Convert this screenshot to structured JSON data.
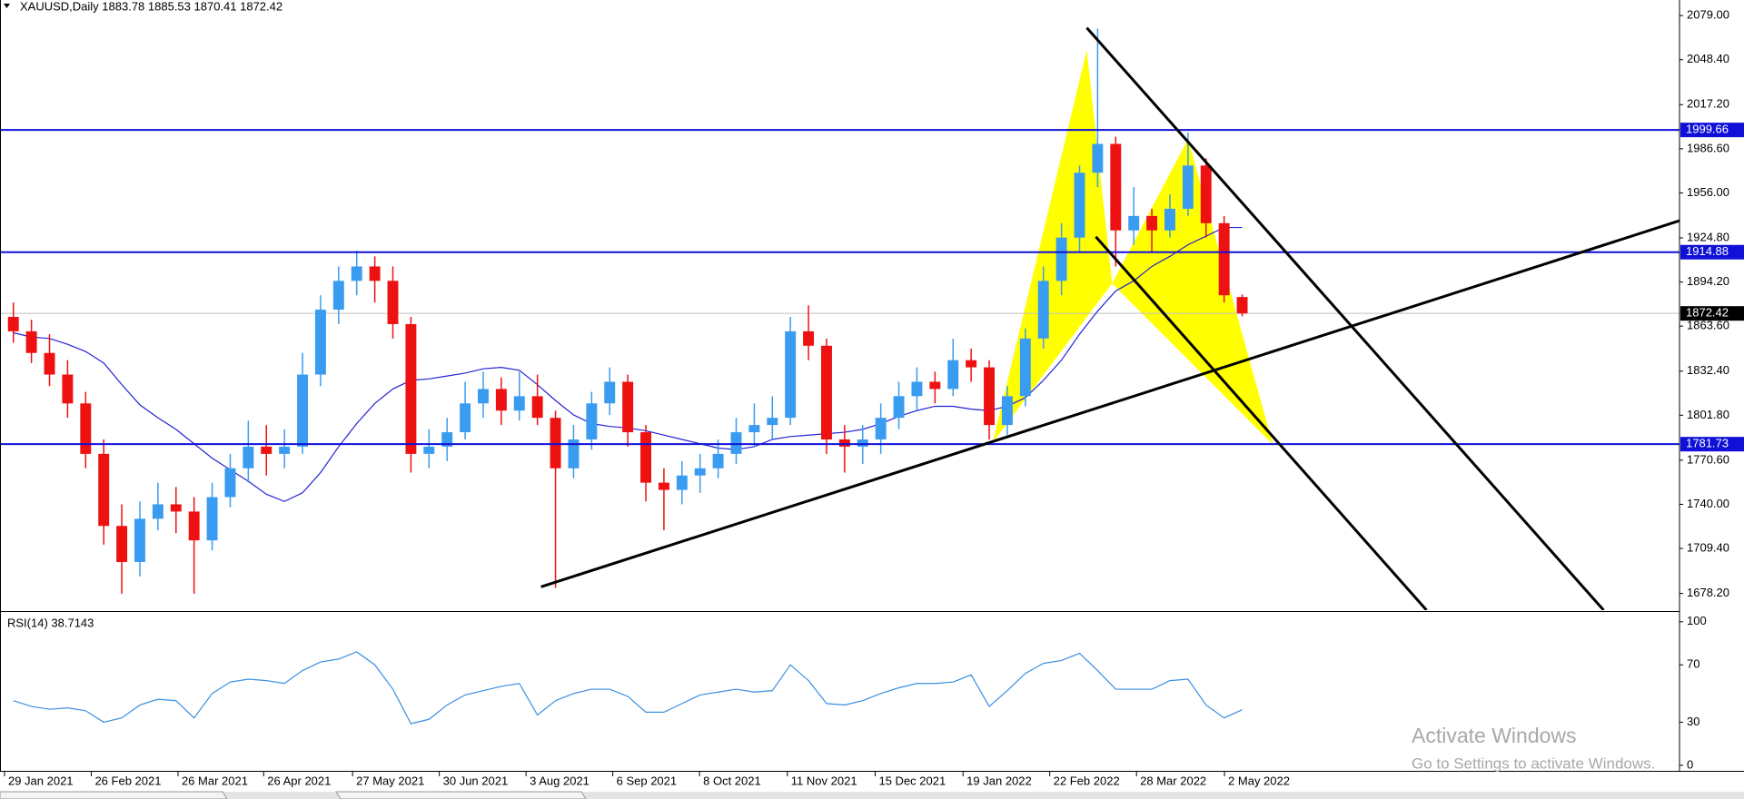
{
  "chart_data": [
    {
      "type": "candlestick",
      "title": "XAUUSD,Daily  1883.78 1885.53 1870.41 1872.42",
      "x": [
        0,
        1,
        2,
        3,
        4,
        5,
        6,
        7,
        8,
        9,
        10,
        11,
        12,
        13,
        14,
        15,
        16,
        17,
        18,
        19,
        20,
        21,
        22,
        23,
        24,
        25,
        26,
        27,
        28,
        29,
        30,
        31,
        32,
        33,
        34,
        35,
        36,
        37,
        38,
        39,
        40,
        41,
        42,
        43,
        44,
        45,
        46,
        47,
        48,
        49,
        50,
        51,
        52,
        53,
        54,
        55,
        56,
        57,
        58,
        59,
        60,
        61,
        62,
        63,
        64,
        65,
        66,
        67,
        68
      ],
      "open": [
        1870,
        1860,
        1845,
        1830,
        1810,
        1775,
        1725,
        1700,
        1730,
        1740,
        1735,
        1715,
        1745,
        1765,
        1780,
        1775,
        1780,
        1830,
        1875,
        1895,
        1905,
        1895,
        1865,
        1775,
        1780,
        1790,
        1810,
        1820,
        1805,
        1815,
        1800,
        1765,
        1785,
        1810,
        1825,
        1790,
        1755,
        1750,
        1760,
        1765,
        1775,
        1790,
        1795,
        1800,
        1860,
        1850,
        1785,
        1780,
        1785,
        1800,
        1815,
        1825,
        1820,
        1840,
        1835,
        1795,
        1815,
        1855,
        1895,
        1925,
        1970,
        1990,
        1930,
        1940,
        1930,
        1945,
        1975,
        1935,
        1883.78
      ],
      "high": [
        1880,
        1868,
        1858,
        1840,
        1818,
        1785,
        1740,
        1742,
        1755,
        1752,
        1745,
        1755,
        1775,
        1798,
        1795,
        1792,
        1845,
        1885,
        1905,
        1916,
        1912,
        1905,
        1870,
        1792,
        1800,
        1825,
        1832,
        1828,
        1832,
        1830,
        1805,
        1795,
        1818,
        1835,
        1830,
        1795,
        1765,
        1770,
        1775,
        1785,
        1800,
        1810,
        1815,
        1870,
        1878,
        1855,
        1795,
        1795,
        1810,
        1825,
        1835,
        1832,
        1855,
        1848,
        1840,
        1822,
        1862,
        1905,
        1935,
        1975,
        2070,
        1995,
        1960,
        1945,
        1955,
        1998,
        1980,
        1940,
        1885.53
      ],
      "low": [
        1852,
        1838,
        1822,
        1800,
        1765,
        1712,
        1678,
        1690,
        1722,
        1720,
        1678,
        1708,
        1738,
        1755,
        1760,
        1765,
        1775,
        1822,
        1865,
        1885,
        1880,
        1855,
        1762,
        1765,
        1770,
        1785,
        1800,
        1795,
        1798,
        1795,
        1682,
        1758,
        1778,
        1802,
        1780,
        1742,
        1722,
        1740,
        1748,
        1758,
        1768,
        1780,
        1785,
        1795,
        1840,
        1775,
        1762,
        1768,
        1775,
        1792,
        1805,
        1810,
        1815,
        1825,
        1785,
        1788,
        1808,
        1848,
        1885,
        1915,
        1960,
        1905,
        1920,
        1915,
        1925,
        1940,
        1925,
        1880,
        1870.41
      ],
      "close": [
        1860,
        1845,
        1830,
        1810,
        1775,
        1725,
        1700,
        1730,
        1740,
        1735,
        1715,
        1745,
        1765,
        1780,
        1775,
        1780,
        1830,
        1875,
        1895,
        1905,
        1895,
        1865,
        1775,
        1780,
        1790,
        1810,
        1820,
        1805,
        1815,
        1800,
        1765,
        1785,
        1810,
        1825,
        1790,
        1755,
        1750,
        1760,
        1765,
        1775,
        1790,
        1795,
        1800,
        1860,
        1850,
        1785,
        1780,
        1785,
        1800,
        1815,
        1825,
        1820,
        1840,
        1835,
        1795,
        1815,
        1855,
        1895,
        1925,
        1970,
        1990,
        1930,
        1940,
        1930,
        1945,
        1975,
        1935,
        1885,
        1872.42
      ],
      "up_color": "#3a9cf0",
      "down_color": "#ee1111",
      "ma": {
        "color": "#2323d6",
        "values": [
          1859,
          1856,
          1855,
          1851,
          1846,
          1838,
          1823,
          1809,
          1800,
          1792,
          1782,
          1772,
          1764,
          1756,
          1747,
          1742,
          1748,
          1762,
          1780,
          1796,
          1810,
          1820,
          1826,
          1827,
          1829,
          1831,
          1834,
          1835,
          1833,
          1823,
          1812,
          1802,
          1796,
          1794,
          1793,
          1791,
          1788,
          1785,
          1782,
          1779,
          1778,
          1780,
          1785,
          1787,
          1788,
          1789,
          1790,
          1792,
          1796,
          1801,
          1805,
          1808,
          1808,
          1806,
          1805,
          1808,
          1814,
          1826,
          1840,
          1858,
          1874,
          1888,
          1895,
          1905,
          1912,
          1920,
          1926,
          1932,
          1932
        ]
      },
      "xlim": [
        -0.74,
        92.2
      ],
      "xticks": [
        {
          "value": -0.49,
          "label": "29 Jan 2021"
        },
        {
          "value": 4.31,
          "label": "26 Feb 2021"
        },
        {
          "value": 9.11,
          "label": "26 Mar 2021"
        },
        {
          "value": 13.85,
          "label": "26 Apr 2021"
        },
        {
          "value": 18.77,
          "label": "27 May 2021"
        },
        {
          "value": 23.57,
          "label": "30 Jun 2021"
        },
        {
          "value": 28.37,
          "label": "3 Aug 2021"
        },
        {
          "value": 33.17,
          "label": "6 Sep 2021"
        },
        {
          "value": 37.97,
          "label": "8 Oct 2021"
        },
        {
          "value": 42.83,
          "label": "11 Nov 2021"
        },
        {
          "value": 47.69,
          "label": "15 Dec 2021"
        },
        {
          "value": 52.55,
          "label": "19 Jan 2022"
        },
        {
          "value": 57.35,
          "label": "22 Feb 2022"
        },
        {
          "value": 62.15,
          "label": "28 Mar 2022"
        },
        {
          "value": 67.02,
          "label": "2 May 2022"
        }
      ],
      "ylim": [
        1666.6,
        2089.8
      ],
      "yticks": [
        {
          "value": 2079,
          "label": "2079.00"
        },
        {
          "value": 2048.4,
          "label": "2048.40"
        },
        {
          "value": 2017.2,
          "label": "2017.20"
        },
        {
          "value": 1986.6,
          "label": "1986.60"
        },
        {
          "value": 1956,
          "label": "1956.00"
        },
        {
          "value": 1924.8,
          "label": "1924.80"
        },
        {
          "value": 1894.2,
          "label": "1894.20"
        },
        {
          "value": 1863.6,
          "label": "1863.60"
        },
        {
          "value": 1832.4,
          "label": "1832.40"
        },
        {
          "value": 1801.8,
          "label": "1801.80"
        },
        {
          "value": 1770.6,
          "label": "1770.60"
        },
        {
          "value": 1740,
          "label": "1740.00"
        },
        {
          "value": 1709.4,
          "label": "1709.40"
        },
        {
          "value": 1678.2,
          "label": "1678.20"
        }
      ],
      "levels": [
        {
          "value": 1999.66,
          "color": "#1010d8"
        },
        {
          "value": 1914.88,
          "color": "#1010d8"
        },
        {
          "value": 1781.73,
          "color": "#1010d8"
        }
      ],
      "current": {
        "value": 1872.42,
        "color": "#000000"
      },
      "trendlines": [
        {
          "x": [
            29.2,
            92.2
          ],
          "y": [
            1682.8,
            1936.7
          ]
        },
        {
          "x": [
            59.4,
            88.0
          ],
          "y": [
            2070.5,
            1666.6
          ]
        },
        {
          "x": [
            59.9,
            78.2
          ],
          "y": [
            1925.6,
            1666.6
          ]
        }
      ],
      "pattern": {
        "color": "#ffff00",
        "triangles": [
          {
            "x": [
              54.2,
              59.4,
              60.8
            ],
            "y": [
              1783,
              2055,
              1893.2
            ]
          },
          {
            "x": [
              60.8,
              65,
              69.7
            ],
            "y": [
              1893.2,
              1993.4,
              1781.5
            ]
          }
        ]
      }
    },
    {
      "type": "line",
      "title": "RSI(14) 38.7143",
      "x": [
        0,
        1,
        2,
        3,
        4,
        5,
        6,
        7,
        8,
        9,
        10,
        11,
        12,
        13,
        14,
        15,
        16,
        17,
        18,
        19,
        20,
        21,
        22,
        23,
        24,
        25,
        26,
        27,
        28,
        29,
        30,
        31,
        32,
        33,
        34,
        35,
        36,
        37,
        38,
        39,
        40,
        41,
        42,
        43,
        44,
        45,
        46,
        47,
        48,
        49,
        50,
        51,
        52,
        53,
        54,
        55,
        56,
        57,
        58,
        59,
        60,
        61,
        62,
        63,
        64,
        65,
        66,
        67,
        68
      ],
      "xlim": [
        -0.74,
        92.2
      ],
      "ylim": [
        -3.9,
        106.2
      ],
      "yticks": [
        100,
        70,
        30,
        0
      ],
      "color": "#3a8fe0",
      "values": [
        45,
        41,
        39,
        40,
        38,
        30,
        33,
        42,
        46,
        45,
        33,
        50,
        58,
        60,
        59,
        57,
        66,
        72,
        74,
        79,
        70,
        53,
        29,
        32,
        42,
        49,
        52,
        55,
        57,
        35,
        45,
        50,
        53,
        53,
        48,
        37,
        37,
        43,
        49,
        51,
        53,
        51,
        52,
        70,
        59,
        43,
        42,
        45,
        50,
        54,
        57,
        57,
        58,
        63,
        41,
        52,
        64,
        71,
        73,
        78,
        66,
        53,
        53,
        53,
        59,
        60,
        42,
        33,
        38.7143
      ]
    }
  ],
  "watermark": {
    "title": "Activate Windows",
    "subtitle": "Go to Settings to activate Windows."
  }
}
